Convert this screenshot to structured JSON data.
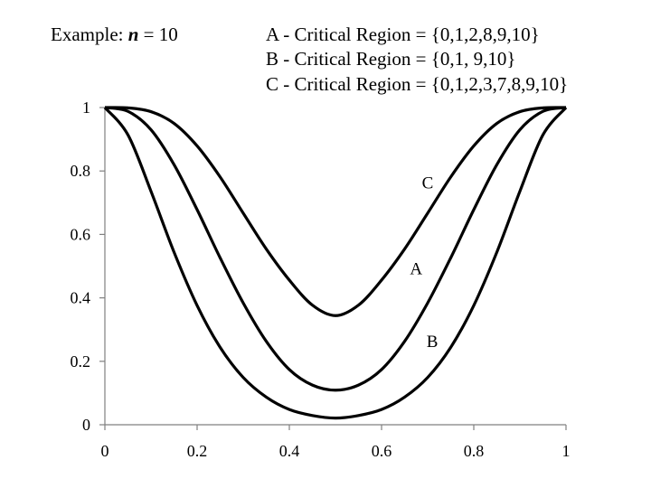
{
  "header": {
    "example_prefix": "Example: ",
    "example_var": "n",
    "example_suffix": " = 10",
    "legend_lines": [
      "A -  Critical Region = {0,1,2,8,9,10}",
      "B -  Critical Region = {0,1, 9,10}",
      "C -  Critical Region = {0,1,2,3,7,8,9,10}"
    ]
  },
  "chart_data": {
    "type": "line",
    "title": "",
    "xlabel": "",
    "ylabel": "",
    "xlim": [
      0,
      1
    ],
    "ylim": [
      0,
      1
    ],
    "x_ticks": [
      "0",
      "0.2",
      "0.4",
      "0.6",
      "0.8",
      "1"
    ],
    "y_ticks": [
      "0",
      "0.2",
      "0.4",
      "0.6",
      "0.8",
      "1"
    ],
    "grid": false,
    "x": [
      0,
      0.05,
      0.1,
      0.15,
      0.2,
      0.25,
      0.3,
      0.35,
      0.4,
      0.45,
      0.5,
      0.55,
      0.6,
      0.65,
      0.7,
      0.75,
      0.8,
      0.85,
      0.9,
      0.95,
      1
    ],
    "series": [
      {
        "name": "A",
        "values": [
          1,
          0.988,
          0.93,
          0.82,
          0.678,
          0.526,
          0.384,
          0.263,
          0.174,
          0.125,
          0.109,
          0.125,
          0.174,
          0.263,
          0.384,
          0.526,
          0.678,
          0.82,
          0.93,
          0.988,
          1
        ]
      },
      {
        "name": "B",
        "values": [
          1,
          0.914,
          0.736,
          0.544,
          0.376,
          0.244,
          0.149,
          0.087,
          0.048,
          0.029,
          0.021,
          0.029,
          0.048,
          0.087,
          0.149,
          0.244,
          0.376,
          0.544,
          0.736,
          0.914,
          1
        ]
      },
      {
        "name": "C",
        "values": [
          1,
          0.999,
          0.987,
          0.95,
          0.879,
          0.781,
          0.667,
          0.554,
          0.456,
          0.377,
          0.344,
          0.377,
          0.456,
          0.554,
          0.667,
          0.781,
          0.879,
          0.95,
          0.987,
          0.999,
          1
        ]
      }
    ],
    "curve_labels": [
      {
        "text": "C",
        "x": 0.7,
        "y": 0.745
      },
      {
        "text": "A",
        "x": 0.675,
        "y": 0.475
      },
      {
        "text": "B",
        "x": 0.71,
        "y": 0.245
      }
    ]
  }
}
